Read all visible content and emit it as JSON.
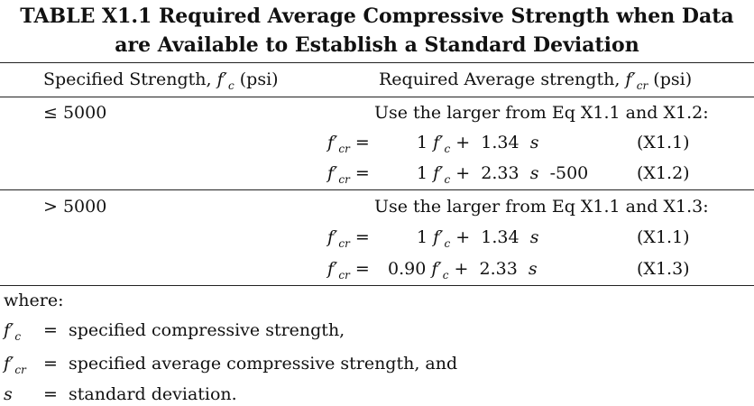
{
  "title": {
    "line1": "TABLE X1.1 Required Average Compressive Strength when Data",
    "line2": "are Available to Establish a Standard Deviation"
  },
  "header": {
    "col1_text": "Specified Strength,",
    "col1_var": "f′",
    "col1_sub": "c",
    "col1_unit": "(psi)",
    "col2_text": "Required Average strength,",
    "col2_var": "f′",
    "col2_sub": "cr",
    "col2_unit": "(psi)"
  },
  "sections": [
    {
      "condition": "≤ 5000",
      "instruction": "Use the larger from Eq X1.1 and X1.2:",
      "equations": [
        {
          "lhs_var": "f′",
          "lhs_sub": "cr",
          "eq": "=",
          "coef": "1",
          "var": "f′",
          "sub": "c",
          "plus": "+",
          "term": "1.34",
          "svar": "s",
          "extra": "",
          "ref": "(X1.1)"
        },
        {
          "lhs_var": "f′",
          "lhs_sub": "cr",
          "eq": "=",
          "coef": "1",
          "var": "f′",
          "sub": "c",
          "plus": "+",
          "term": "2.33",
          "svar": "s",
          "extra": "-500",
          "ref": "(X1.2)"
        }
      ]
    },
    {
      "condition": "> 5000",
      "instruction": "Use the larger from Eq X1.1 and X1.3:",
      "equations": [
        {
          "lhs_var": "f′",
          "lhs_sub": "cr",
          "eq": "=",
          "coef": "1",
          "var": "f′",
          "sub": "c",
          "plus": "+",
          "term": "1.34",
          "svar": "s",
          "extra": "",
          "ref": "(X1.1)"
        },
        {
          "lhs_var": "f′",
          "lhs_sub": "cr",
          "eq": "=",
          "coef": "0.90",
          "var": "f′",
          "sub": "c",
          "plus": "+",
          "term": "2.33",
          "svar": "s",
          "extra": "",
          "ref": "(X1.3)"
        }
      ]
    }
  ],
  "where": {
    "label": "where:",
    "defs": [
      {
        "var": "f′",
        "sub": "c",
        "eq": "=",
        "text": "specified compressive strength,"
      },
      {
        "var": "f′",
        "sub": "cr",
        "eq": "=",
        "text": "specified average compressive strength, and"
      },
      {
        "var": "s",
        "sub": "",
        "eq": "=",
        "text": "standard deviation."
      }
    ]
  }
}
